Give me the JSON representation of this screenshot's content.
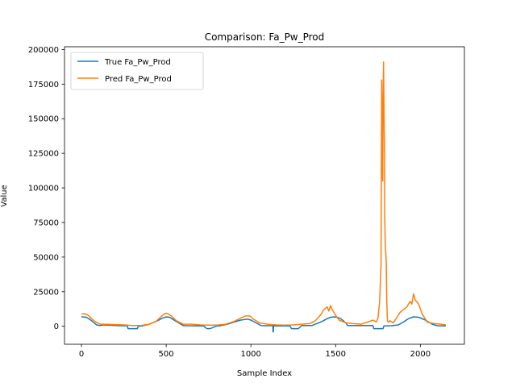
{
  "chart_data": {
    "type": "line",
    "title": "Comparison: Fa_Pw_Prod",
    "xlabel": "Sample Index",
    "ylabel": "Value",
    "xlim": [
      -100,
      2260
    ],
    "ylim": [
      -13000,
      202000
    ],
    "xticks": [
      0,
      500,
      1000,
      1500,
      2000
    ],
    "yticks": [
      0,
      25000,
      50000,
      75000,
      100000,
      125000,
      150000,
      175000,
      200000
    ],
    "xtick_labels": [
      "0",
      "500",
      "1000",
      "1500",
      "2000"
    ],
    "ytick_labels": [
      "0",
      "25000",
      "50000",
      "75000",
      "100000",
      "125000",
      "150000",
      "175000",
      "200000"
    ],
    "legend_position": "top-left",
    "grid": false,
    "series": [
      {
        "name": "True Fa_Pw_Prod",
        "color": "#1f77b4",
        "x": [
          0,
          30,
          60,
          90,
          110,
          130,
          180,
          230,
          270,
          275,
          330,
          335,
          360,
          400,
          440,
          480,
          500,
          520,
          560,
          600,
          620,
          700,
          720,
          740,
          760,
          800,
          820,
          860,
          900,
          940,
          980,
          1000,
          1030,
          1060,
          1090,
          1130,
          1131,
          1133,
          1134,
          1180,
          1230,
          1240,
          1280,
          1300,
          1360,
          1380,
          1420,
          1450,
          1470,
          1500,
          1530,
          1560,
          1570,
          1600,
          1680,
          1720,
          1725,
          1780,
          1785,
          1830,
          1870,
          1900,
          1930,
          1960,
          1990,
          2030,
          2070,
          2100,
          2150
        ],
        "y": [
          6800,
          6500,
          4000,
          1000,
          500,
          1000,
          700,
          400,
          400,
          -1700,
          -1700,
          0,
          300,
          1500,
          3500,
          6000,
          6800,
          6500,
          3500,
          600,
          400,
          300,
          300,
          -1700,
          -1700,
          300,
          400,
          1500,
          3000,
          4500,
          5200,
          4500,
          2500,
          500,
          400,
          400,
          -4000,
          -4000,
          300,
          300,
          300,
          -1700,
          -1700,
          500,
          500,
          1500,
          3500,
          5500,
          6500,
          6800,
          5500,
          2500,
          600,
          500,
          500,
          500,
          -1700,
          -1700,
          300,
          400,
          1000,
          3000,
          5500,
          6800,
          6500,
          4500,
          1500,
          400,
          300
        ]
      },
      {
        "name": "Pred Fa_Pw_Prod",
        "color": "#ff7f0e",
        "x": [
          0,
          20,
          40,
          60,
          80,
          110,
          150,
          200,
          250,
          300,
          350,
          400,
          440,
          470,
          490,
          500,
          510,
          530,
          560,
          600,
          650,
          700,
          750,
          800,
          850,
          900,
          940,
          970,
          990,
          1000,
          1010,
          1050,
          1100,
          1150,
          1200,
          1250,
          1300,
          1350,
          1380,
          1410,
          1430,
          1450,
          1460,
          1470,
          1480,
          1500,
          1520,
          1560,
          1600,
          1650,
          1700,
          1720,
          1740,
          1750,
          1760,
          1768,
          1772,
          1775,
          1778,
          1780,
          1783,
          1786,
          1788,
          1790,
          1793,
          1796,
          1799,
          1802,
          1806,
          1812,
          1820,
          1840,
          1860,
          1880,
          1900,
          1920,
          1940,
          1950,
          1960,
          1970,
          1990,
          2010,
          2040,
          2080,
          2120,
          2150
        ],
        "y": [
          9000,
          9000,
          8000,
          5500,
          3500,
          1500,
          1500,
          1200,
          1000,
          500,
          500,
          1500,
          3500,
          7000,
          9000,
          9500,
          9000,
          7500,
          4000,
          1500,
          1500,
          1000,
          800,
          800,
          1500,
          3500,
          6000,
          7500,
          7500,
          7000,
          5500,
          2500,
          1500,
          1000,
          800,
          1000,
          1500,
          2000,
          4000,
          8000,
          12000,
          14000,
          11000,
          15000,
          12000,
          8000,
          4500,
          2500,
          2000,
          1500,
          3500,
          4500,
          3000,
          6000,
          18000,
          45000,
          178000,
          120000,
          105000,
          168000,
          191000,
          150000,
          130000,
          80000,
          57000,
          53000,
          45000,
          18000,
          3500,
          3000,
          4000,
          2500,
          6000,
          10000,
          12000,
          14000,
          18000,
          16000,
          23500,
          19000,
          16000,
          9000,
          3000,
          2000,
          1500,
          1000
        ]
      }
    ]
  }
}
